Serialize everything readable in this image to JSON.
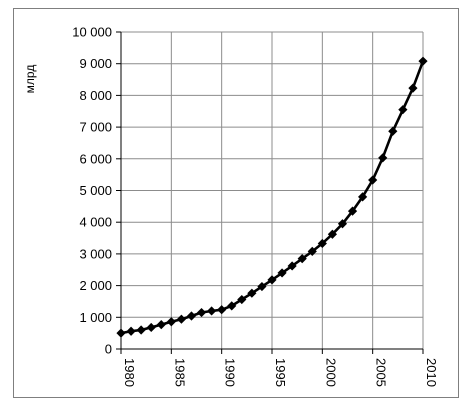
{
  "chart_data": {
    "type": "line",
    "title": "",
    "xlabel": "",
    "ylabel": "млрд",
    "x": [
      1980,
      1981,
      1982,
      1983,
      1984,
      1985,
      1986,
      1987,
      1988,
      1989,
      1990,
      1991,
      1992,
      1993,
      1994,
      1995,
      1996,
      1997,
      1998,
      1999,
      2000,
      2001,
      2002,
      2003,
      2004,
      2005,
      2006,
      2007,
      2008,
      2009,
      2010
    ],
    "series": [
      {
        "values": [
          500,
          560,
          600,
          680,
          770,
          860,
          940,
          1040,
          1150,
          1200,
          1240,
          1360,
          1560,
          1760,
          1970,
          2180,
          2400,
          2620,
          2850,
          3080,
          3330,
          3620,
          3950,
          4350,
          4800,
          5330,
          6030,
          6870,
          7550,
          8230,
          9080
        ]
      }
    ],
    "xlim": [
      1980,
      2010
    ],
    "ylim": [
      0,
      10000
    ],
    "x_ticks": [
      1980,
      1985,
      1990,
      1995,
      2000,
      2005,
      2010
    ],
    "x_tick_labels": [
      "1980",
      "1985",
      "1990",
      "1995",
      "2000",
      "2005",
      "2010"
    ],
    "y_ticks": [
      0,
      1000,
      2000,
      3000,
      4000,
      5000,
      6000,
      7000,
      8000,
      9000,
      10000
    ],
    "y_tick_labels": [
      "0",
      "1 000",
      "2 000",
      "3 000",
      "4 000",
      "5 000",
      "6 000",
      "7 000",
      "8 000",
      "9 000",
      "10 000"
    ],
    "grid": true,
    "marker": "diamond",
    "line_color": "#000000",
    "grid_color": "#8c8c8c"
  }
}
